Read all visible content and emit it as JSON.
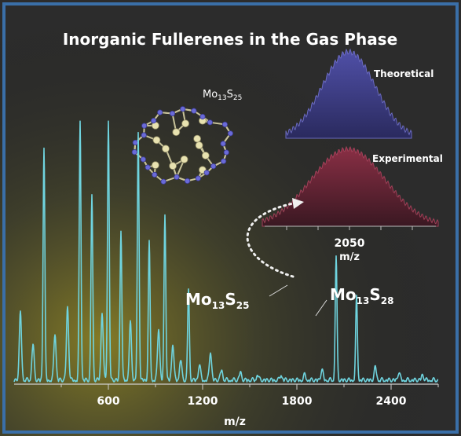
{
  "chart_data": [
    {
      "type": "line",
      "title": "Inorganic Fullerenes in the Gas Phase",
      "xlabel": "m/z",
      "ylabel": "",
      "xlim": [
        0,
        2700
      ],
      "xticks": [
        "600",
        "1200",
        "1800",
        "2400"
      ],
      "xtick_values": [
        600,
        1200,
        1800,
        2400
      ],
      "series": [
        {
          "peaks": [
            {
              "x": 40,
              "y": 0.26
            },
            {
              "x": 120,
              "y": 0.14
            },
            {
              "x": 190,
              "y": 0.9
            },
            {
              "x": 260,
              "y": 0.18
            },
            {
              "x": 340,
              "y": 0.28
            },
            {
              "x": 420,
              "y": 1.0
            },
            {
              "x": 495,
              "y": 0.72
            },
            {
              "x": 560,
              "y": 0.26
            },
            {
              "x": 600,
              "y": 1.0
            },
            {
              "x": 680,
              "y": 0.58
            },
            {
              "x": 740,
              "y": 0.22
            },
            {
              "x": 790,
              "y": 0.95
            },
            {
              "x": 860,
              "y": 0.53
            },
            {
              "x": 920,
              "y": 0.2
            },
            {
              "x": 960,
              "y": 0.64
            },
            {
              "x": 1010,
              "y": 0.14
            },
            {
              "x": 1060,
              "y": 0.08
            },
            {
              "x": 1110,
              "y": 0.35
            },
            {
              "x": 1180,
              "y": 0.06
            },
            {
              "x": 1250,
              "y": 0.11
            },
            {
              "x": 1320,
              "y": 0.04
            },
            {
              "x": 1440,
              "y": 0.03
            },
            {
              "x": 1550,
              "y": 0.02
            },
            {
              "x": 1700,
              "y": 0.02
            },
            {
              "x": 1850,
              "y": 0.02
            },
            {
              "x": 1960,
              "y": 0.04
            },
            {
              "x": 2050,
              "y": 0.48
            },
            {
              "x": 2180,
              "y": 0.32
            },
            {
              "x": 2300,
              "y": 0.05
            },
            {
              "x": 2450,
              "y": 0.03
            },
            {
              "x": 2600,
              "y": 0.02
            }
          ]
        }
      ],
      "annotations": [
        {
          "label": "Mo",
          "sub1": "13",
          "mid": "S",
          "sub2": "25",
          "x": 2050
        },
        {
          "label": "Mo",
          "sub1": "13",
          "mid": "S",
          "sub2": "28",
          "x": 2180
        }
      ]
    },
    {
      "type": "area",
      "inset": "theoretical",
      "label": "Theoretical",
      "color": "#4a4a9a"
    },
    {
      "type": "area",
      "inset": "experimental",
      "label": "Experimental",
      "color": "#7a2a3c",
      "xticks": [
        "2050"
      ],
      "xlabel": "m/z"
    }
  ],
  "molecule": {
    "label": "Mo",
    "sub1": "13",
    "mid": "S",
    "sub2": "25"
  },
  "colors": {
    "spectrum": "#6fd4df",
    "theoretical": "#4a4a9a",
    "experimental": "#7a2a3c",
    "text": "#ffffff",
    "glow": "#a69a2a"
  }
}
